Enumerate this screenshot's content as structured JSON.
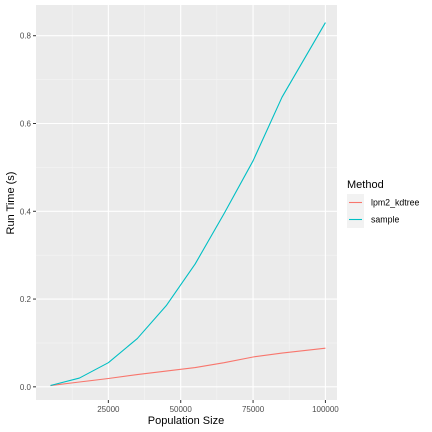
{
  "chart_data": {
    "type": "line",
    "xlabel": "Population Size",
    "ylabel": "Run Time (s)",
    "xlim": [
      0,
      104000
    ],
    "ylim": [
      -0.03,
      0.87
    ],
    "x_ticks": [
      25000,
      50000,
      75000,
      100000
    ],
    "x_tick_labels": [
      "25000",
      "50000",
      "75000",
      "100000"
    ],
    "y_ticks": [
      0.0,
      0.2,
      0.4,
      0.6,
      0.8
    ],
    "y_tick_labels": [
      "0.0",
      "0.2",
      "0.4",
      "0.6",
      "0.8"
    ],
    "grid": true,
    "legend": {
      "title": "Method",
      "position": "right"
    },
    "series": [
      {
        "name": "lpm2_kdtree",
        "color": "#F8766D",
        "x": [
          5000,
          15000,
          25000,
          35000,
          45000,
          55000,
          65000,
          75000,
          85000,
          100000
        ],
        "y": [
          0.003,
          0.011,
          0.019,
          0.028,
          0.036,
          0.044,
          0.055,
          0.068,
          0.077,
          0.088
        ]
      },
      {
        "name": "sample",
        "color": "#00BFC4",
        "x": [
          5000,
          15000,
          25000,
          35000,
          45000,
          55000,
          65000,
          75000,
          85000,
          100000
        ],
        "y": [
          0.003,
          0.02,
          0.055,
          0.11,
          0.185,
          0.28,
          0.395,
          0.515,
          0.66,
          0.83
        ]
      }
    ]
  }
}
